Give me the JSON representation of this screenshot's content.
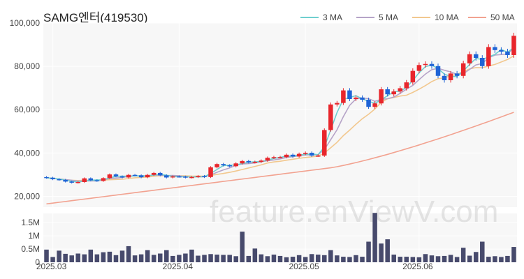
{
  "title": "SAMG엔터(419530)",
  "watermark": "feature.enViewV.com",
  "legend": [
    {
      "label": "3 MA",
      "color": "#6fcfcf"
    },
    {
      "label": "5 MA",
      "color": "#b6a4c8"
    },
    {
      "label": "10 MA",
      "color": "#f2c88f"
    },
    {
      "label": "50 MA",
      "color": "#f2a290"
    }
  ],
  "colors": {
    "up": "#e8262c",
    "down": "#1f64d6",
    "volume": "#474a6c"
  },
  "chart_data": [
    {
      "type": "candlestick",
      "title": "SAMG엔터(419530)",
      "ylim": [
        15000,
        100000
      ],
      "yticks": [
        20000,
        40000,
        60000,
        80000,
        100000
      ],
      "ytick_labels": [
        "20,000",
        "40,000",
        "60,000",
        "80,000",
        "100,000"
      ],
      "xtick_labels": [
        {
          "label": "2025.03",
          "index": 1
        },
        {
          "label": "2025.04",
          "index": 21
        },
        {
          "label": "2025.05",
          "index": 41
        },
        {
          "label": "2025.06",
          "index": 59
        }
      ],
      "grid": true,
      "legend_position": "top-right",
      "close": [
        28600,
        27900,
        27600,
        26800,
        26300,
        26600,
        28300,
        27400,
        27100,
        28400,
        30100,
        29200,
        28700,
        29900,
        29700,
        28800,
        29900,
        30800,
        29700,
        28700,
        29200,
        29100,
        28700,
        28900,
        29400,
        28900,
        33400,
        34900,
        34300,
        33900,
        35200,
        36300,
        35700,
        35900,
        36500,
        37800,
        38100,
        38100,
        39200,
        38400,
        39600,
        40100,
        38800,
        38800,
        50600,
        62400,
        63100,
        68900,
        64900,
        65600,
        64600,
        61300,
        62900,
        69400,
        67100,
        68400,
        69900,
        72600,
        77900,
        80600,
        81100,
        80100,
        75600,
        73600,
        76700,
        75600,
        81400,
        85600,
        83900,
        80100,
        88900,
        87500,
        86800,
        85200,
        94100
      ]
    },
    {
      "type": "bar",
      "title": "",
      "ylim": [
        0,
        1850000
      ],
      "yticks": [
        0,
        500000,
        1000000,
        1500000
      ],
      "ytick_labels": [
        "0",
        "0.5M",
        "1M",
        "1.5M"
      ],
      "values": [
        480000,
        200000,
        440000,
        320000,
        260000,
        330000,
        300000,
        480000,
        300000,
        380000,
        400000,
        270000,
        440000,
        610000,
        260000,
        300000,
        460000,
        280000,
        330000,
        460000,
        240000,
        280000,
        330000,
        480000,
        250000,
        280000,
        310000,
        290000,
        280000,
        280000,
        230000,
        1160000,
        240000,
        520000,
        300000,
        230000,
        290000,
        240000,
        190000,
        210000,
        270000,
        200000,
        310000,
        290000,
        270000,
        460000,
        260000,
        210000,
        200000,
        270000,
        210000,
        780000,
        1870000,
        710000,
        870000,
        290000,
        210000,
        210000,
        200000,
        190000,
        310000,
        260000,
        230000,
        240000,
        280000,
        200000,
        550000,
        250000,
        390000,
        780000,
        210000,
        230000,
        200000,
        240000,
        580000
      ]
    }
  ]
}
